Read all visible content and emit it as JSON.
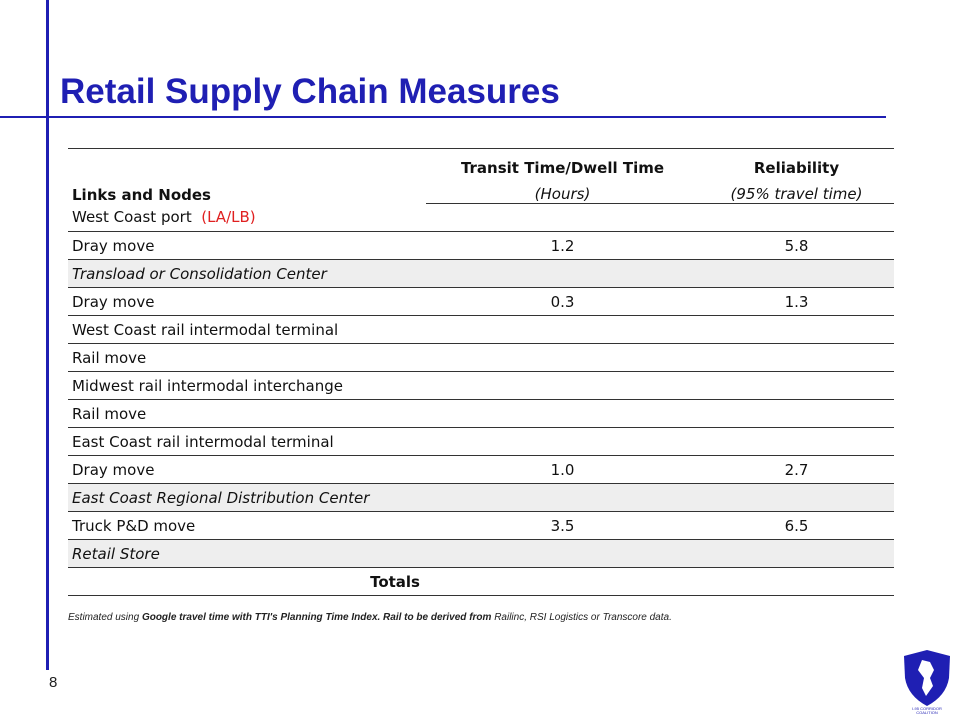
{
  "slide": {
    "title": "Retail Supply Chain Measures",
    "page_number": "8"
  },
  "table": {
    "headers": {
      "col1": "Links and Nodes",
      "col2_line1": "Transit Time/Dwell Time",
      "col2_line2": "(Hours)",
      "col3_line1": "Reliability",
      "col3_line2": "(95% travel time)"
    },
    "rows": [
      {
        "label": "West Coast port",
        "note": "(LA/LB)",
        "transit": "",
        "reliability": ""
      },
      {
        "label": "Dray move",
        "transit": "1.2",
        "reliability": "5.8"
      },
      {
        "label": "Transload or Consolidation Center",
        "transit": "",
        "reliability": ""
      },
      {
        "label": "Dray move",
        "transit": "0.3",
        "reliability": "1.3"
      },
      {
        "label": "West Coast rail intermodal terminal",
        "transit": "",
        "reliability": ""
      },
      {
        "label": "Rail move",
        "transit": "",
        "reliability": ""
      },
      {
        "label": "Midwest rail intermodal interchange",
        "transit": "",
        "reliability": ""
      },
      {
        "label": "Rail move",
        "transit": "",
        "reliability": ""
      },
      {
        "label": "East Coast rail intermodal terminal",
        "transit": "",
        "reliability": ""
      },
      {
        "label": "Dray move",
        "transit": "1.0",
        "reliability": "2.7"
      },
      {
        "label": "East Coast Regional Distribution Center",
        "transit": "",
        "reliability": ""
      },
      {
        "label": "Truck P&D move",
        "transit": "3.5",
        "reliability": "6.5"
      },
      {
        "label": "Retail Store",
        "transit": "",
        "reliability": ""
      },
      {
        "label": "Totals",
        "transit": "",
        "reliability": ""
      }
    ]
  },
  "footnote": {
    "part1": "Estimated using ",
    "part2": "Google travel time with TTI's Planning Time Index.  Rail to be derived from ",
    "part3": "Railinc, RSI Logistics or Transcore data."
  },
  "colors": {
    "accent": "#1f1fb3",
    "note_red": "#e02020",
    "shaded_row": "#eeeeee"
  },
  "logo": {
    "icon": "shield-map-logo-icon",
    "text": "I-95 CORRIDOR COALITION"
  }
}
